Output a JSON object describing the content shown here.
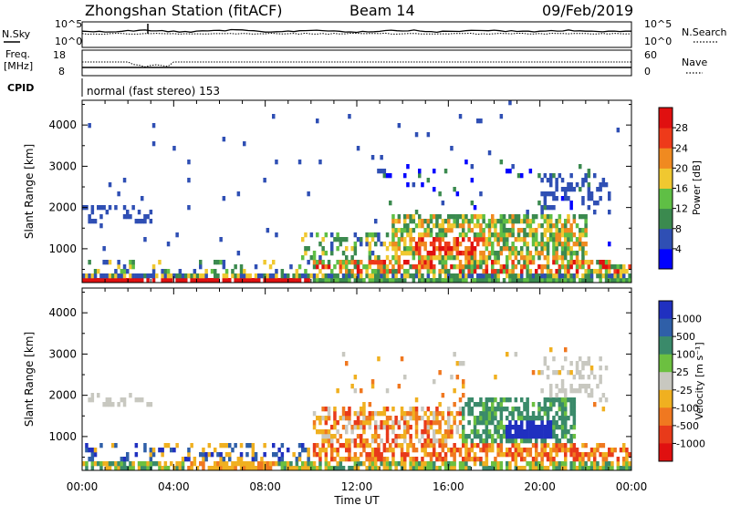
{
  "header": {
    "station_title": "Zhongshan Station (fitACF)",
    "beam": "Beam 14",
    "date": "09/Feb/2019"
  },
  "sky_panel": {
    "left_label": "N.Sky",
    "left_ticks": [
      "10^5",
      "10^0"
    ],
    "right_label": "N.Search",
    "right_ticks": [
      "10^5",
      "10^0"
    ]
  },
  "freq_panel": {
    "left_label_1": "Freq.",
    "left_label_2": "[MHz]",
    "left_ticks": [
      "18",
      "8"
    ],
    "right_label": "Nave",
    "right_ticks": [
      "60",
      "0"
    ]
  },
  "cpid_panel": {
    "label": "CPID",
    "text": "normal (fast stereo) 153"
  },
  "chart_data": [
    {
      "type": "heatmap",
      "title": "",
      "xlabel": "Time UT",
      "ylabel": "Slant Range [km]",
      "x_range_hours": [
        0,
        24
      ],
      "xticks": [
        "00:00",
        "04:00",
        "08:00",
        "12:00",
        "16:00",
        "20:00",
        "00:00"
      ],
      "ylim": [
        180,
        4600
      ],
      "yticks": [
        1000,
        2000,
        3000,
        4000
      ],
      "colorbar": {
        "label": "Power [dB]",
        "ticks": [
          "4",
          "8",
          "12",
          "16",
          "20",
          "24",
          "28"
        ],
        "colors": [
          "#0000ff",
          "#2f4fb4",
          "#3b8a4f",
          "#5fbf45",
          "#f0c830",
          "#f08a20",
          "#ee3a1a",
          "#e01010"
        ]
      }
    },
    {
      "type": "heatmap",
      "title": "",
      "xlabel": "Time UT",
      "ylabel": "Slant Range [km]",
      "x_range_hours": [
        0,
        24
      ],
      "xticks": [
        "00:00",
        "04:00",
        "08:00",
        "12:00",
        "16:00",
        "20:00",
        "00:00"
      ],
      "ylim": [
        180,
        4600
      ],
      "yticks": [
        1000,
        2000,
        3000,
        4000
      ],
      "colorbar": {
        "label": "Velocity [m s⁻¹]",
        "ticks": [
          "1000",
          "500",
          "100",
          "25",
          "-25",
          "-100",
          "-500",
          "-1000"
        ],
        "colors": [
          "#2030c0",
          "#2f5fa8",
          "#3a8a6a",
          "#6cc040",
          "#c8c8c0",
          "#f0b020",
          "#f07820",
          "#e83a1a",
          "#e01010"
        ]
      }
    }
  ],
  "x_axis": {
    "label": "Time UT",
    "ticks": [
      "00:00",
      "04:00",
      "08:00",
      "12:00",
      "16:00",
      "20:00",
      "00:00"
    ]
  }
}
